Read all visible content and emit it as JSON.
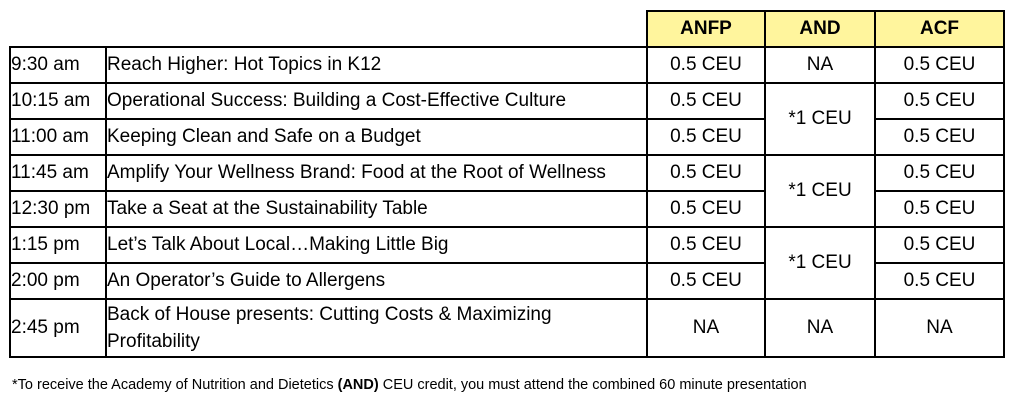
{
  "table": {
    "headers": [
      "ANFP",
      "AND",
      "ACF"
    ],
    "rows": [
      {
        "time": "9:30 am",
        "title": "Reach Higher: Hot Topics in K12",
        "anfp": "0.5 CEU",
        "and": "NA",
        "acf": "0.5 CEU"
      },
      {
        "time": "10:15 am",
        "title": "Operational Success: Building a Cost-Effective Culture",
        "anfp": "0.5 CEU",
        "and": "*1 CEU",
        "acf": "0.5 CEU"
      },
      {
        "time": "11:00 am",
        "title": "Keeping Clean and Safe on a Budget",
        "anfp": "0.5 CEU",
        "acf": "0.5 CEU"
      },
      {
        "time": "11:45 am",
        "title": "Amplify Your Wellness Brand: Food at the Root of Wellness",
        "anfp": "0.5 CEU",
        "and": "*1 CEU",
        "acf": "0.5 CEU"
      },
      {
        "time": "12:30 pm",
        "title": "Take a Seat at the Sustainability Table",
        "anfp": "0.5 CEU",
        "acf": "0.5 CEU"
      },
      {
        "time": "1:15 pm",
        "title": "Let’s Talk About Local…Making Little Big",
        "anfp": "0.5 CEU",
        "and": "*1 CEU",
        "acf": "0.5 CEU"
      },
      {
        "time": "2:00 pm",
        "title": "An Operator’s Guide to Allergens",
        "anfp": "0.5 CEU",
        "acf": "0.5 CEU"
      },
      {
        "time": "2:45 pm",
        "title": "Back of House presents: Cutting Costs & Maximizing Profitability",
        "anfp": "NA",
        "and": "NA",
        "acf": "NA"
      }
    ]
  },
  "footnote": {
    "before": "*To receive the Academy of Nutrition and Dietetics ",
    "bold": "(AND)",
    "after": " CEU credit, you must attend the combined 60 minute presentation"
  },
  "colors": {
    "header_bg": "#fff59d",
    "border": "#000000"
  }
}
